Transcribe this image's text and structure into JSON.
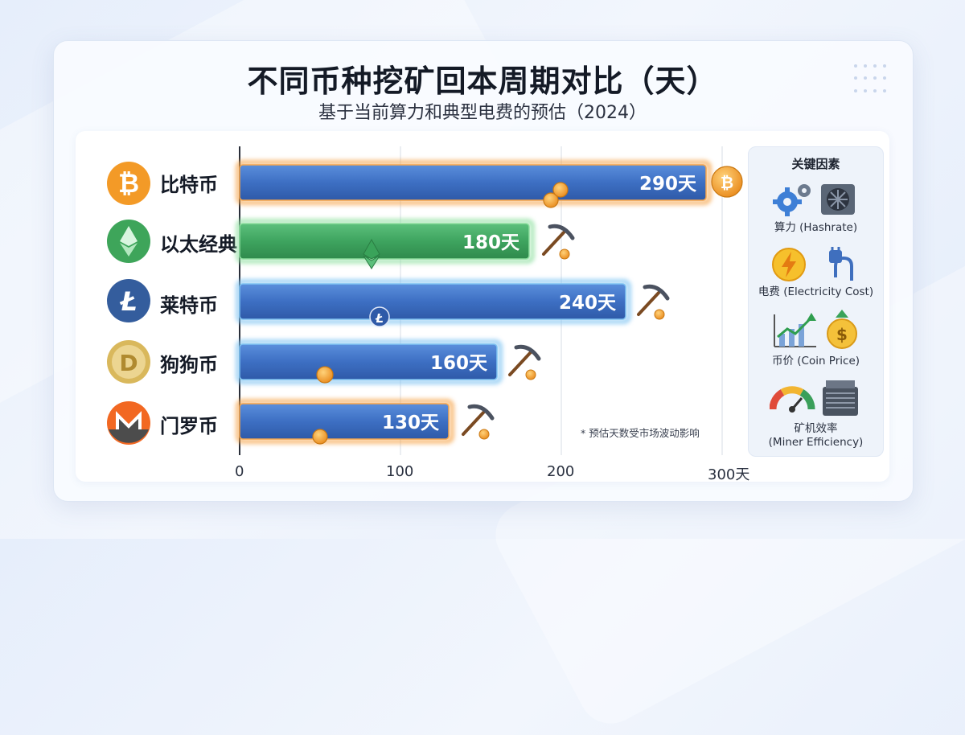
{
  "title": "不同币种挖矿回本周期对比（天）",
  "subtitle": "基于当前算力和典型电费的预估（2024）",
  "note": "* 预估天数受市场波动影响",
  "factors": {
    "title": "关键因素",
    "items": [
      {
        "label": "算力 (Hashrate)",
        "icon": "gears-icon"
      },
      {
        "label": "电费 (Electricity Cost)",
        "icon": "lightning-plug-icon"
      },
      {
        "label": "币价 (Coin Price)",
        "icon": "growth-chart-dollar-icon"
      },
      {
        "label": "矿机效率\n(Miner Efficiency)",
        "icon": "gauge-miner-icon"
      }
    ]
  },
  "chart_data": {
    "type": "bar",
    "orientation": "horizontal",
    "title": "不同币种挖矿回本周期对比（天）",
    "subtitle": "基于当前算力和典型电费的预估（2024）",
    "categories": [
      "比特币",
      "以太经典",
      "莱特币",
      "狗狗币",
      "门罗币"
    ],
    "values": [
      290,
      180,
      240,
      160,
      130
    ],
    "value_labels": [
      "290天",
      "180天",
      "240天",
      "160天",
      "130天"
    ],
    "xlim": [
      0,
      300
    ],
    "xticks": [
      0,
      100,
      200,
      300
    ],
    "xtick_labels": [
      "0",
      "100",
      "200",
      "300天"
    ],
    "grid": true,
    "colors": {
      "blue_bar": "#3f74c8",
      "green_bar": "#3fa463",
      "glow_orange": "#f6a54c",
      "glow_blue": "#7ec3f2",
      "glow_green": "#8fe0a0"
    },
    "bar_styles": [
      "blue-orange-glow",
      "green",
      "blue",
      "blue",
      "blue-orange-glow"
    ],
    "coin_icons": [
      "bitcoin-icon",
      "ethereum-classic-icon",
      "litecoin-icon",
      "dogecoin-icon",
      "monero-icon"
    ]
  }
}
